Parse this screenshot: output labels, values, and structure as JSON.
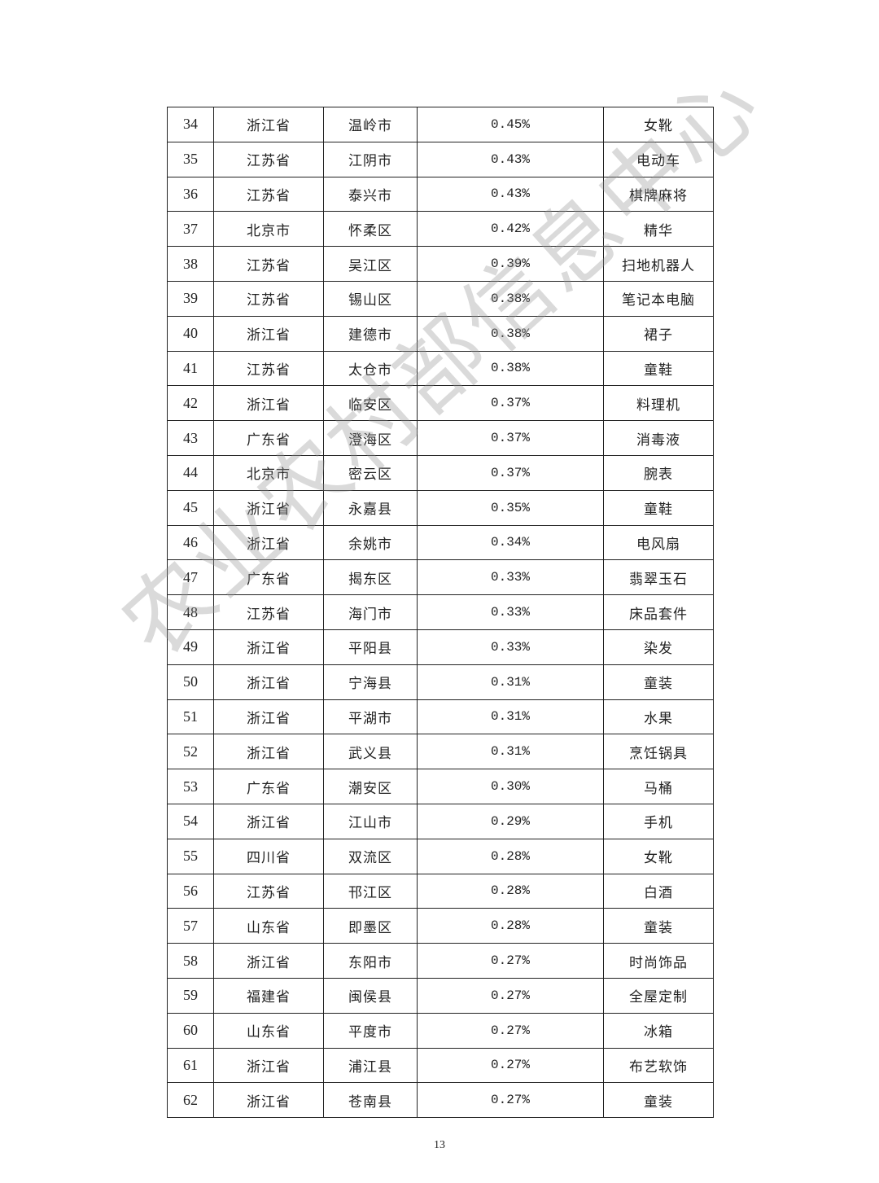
{
  "table": {
    "rows": [
      [
        "34",
        "浙江省",
        "温岭市",
        "0.45%",
        "女靴"
      ],
      [
        "35",
        "江苏省",
        "江阴市",
        "0.43%",
        "电动车"
      ],
      [
        "36",
        "江苏省",
        "泰兴市",
        "0.43%",
        "棋牌麻将"
      ],
      [
        "37",
        "北京市",
        "怀柔区",
        "0.42%",
        "精华"
      ],
      [
        "38",
        "江苏省",
        "吴江区",
        "0.39%",
        "扫地机器人"
      ],
      [
        "39",
        "江苏省",
        "锡山区",
        "0.38%",
        "笔记本电脑"
      ],
      [
        "40",
        "浙江省",
        "建德市",
        "0.38%",
        "裙子"
      ],
      [
        "41",
        "江苏省",
        "太仓市",
        "0.38%",
        "童鞋"
      ],
      [
        "42",
        "浙江省",
        "临安区",
        "0.37%",
        "料理机"
      ],
      [
        "43",
        "广东省",
        "澄海区",
        "0.37%",
        "消毒液"
      ],
      [
        "44",
        "北京市",
        "密云区",
        "0.37%",
        "腕表"
      ],
      [
        "45",
        "浙江省",
        "永嘉县",
        "0.35%",
        "童鞋"
      ],
      [
        "46",
        "浙江省",
        "余姚市",
        "0.34%",
        "电风扇"
      ],
      [
        "47",
        "广东省",
        "揭东区",
        "0.33%",
        "翡翠玉石"
      ],
      [
        "48",
        "江苏省",
        "海门市",
        "0.33%",
        "床品套件"
      ],
      [
        "49",
        "浙江省",
        "平阳县",
        "0.33%",
        "染发"
      ],
      [
        "50",
        "浙江省",
        "宁海县",
        "0.31%",
        "童装"
      ],
      [
        "51",
        "浙江省",
        "平湖市",
        "0.31%",
        "水果"
      ],
      [
        "52",
        "浙江省",
        "武义县",
        "0.31%",
        "烹饪锅具"
      ],
      [
        "53",
        "广东省",
        "潮安区",
        "0.30%",
        "马桶"
      ],
      [
        "54",
        "浙江省",
        "江山市",
        "0.29%",
        "手机"
      ],
      [
        "55",
        "四川省",
        "双流区",
        "0.28%",
        "女靴"
      ],
      [
        "56",
        "江苏省",
        "邗江区",
        "0.28%",
        "白酒"
      ],
      [
        "57",
        "山东省",
        "即墨区",
        "0.28%",
        "童装"
      ],
      [
        "58",
        "浙江省",
        "东阳市",
        "0.27%",
        "时尚饰品"
      ],
      [
        "59",
        "福建省",
        "闽侯县",
        "0.27%",
        "全屋定制"
      ],
      [
        "60",
        "山东省",
        "平度市",
        "0.27%",
        "冰箱"
      ],
      [
        "61",
        "浙江省",
        "浦江县",
        "0.27%",
        "布艺软饰"
      ],
      [
        "62",
        "浙江省",
        "苍南县",
        "0.27%",
        "童装"
      ]
    ]
  },
  "page_number": "13",
  "watermark": "农业农村部信息中心"
}
